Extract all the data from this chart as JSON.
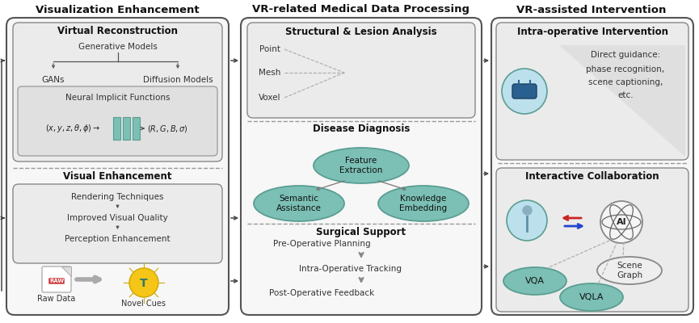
{
  "bg_color": "#ffffff",
  "panel_bg": "#f7f7f7",
  "inner_box_bg": "#ebebeb",
  "inner_box2_bg": "#e4e4e4",
  "teal_fill": "#7bbfb5",
  "teal_edge": "#5a9e92",
  "box_edge": "#888888",
  "outer_edge": "#555555",
  "arrow_col": "#444444",
  "dash_col": "#aaaaaa",
  "divider_col": "#999999",
  "title_col": "#111111",
  "text_col": "#333333",
  "col1_title": "Visualization Enhancement",
  "col2_title": "VR-related Medical Data Processing",
  "col3_title": "VR-assisted Intervention",
  "col1_sub1": "Virtual Reconstruction",
  "col1_sub2": "Visual Enhancement",
  "col2_sub1": "Structural & Lesion Analysis",
  "col2_sub2": "Disease Diagnosis",
  "col2_sub3": "Surgical Support",
  "col3_sub1": "Intra-operative Intervention",
  "col3_sub2": "Interactive Collaboration",
  "fig_width": 8.65,
  "fig_height": 4.0,
  "dpi": 100
}
